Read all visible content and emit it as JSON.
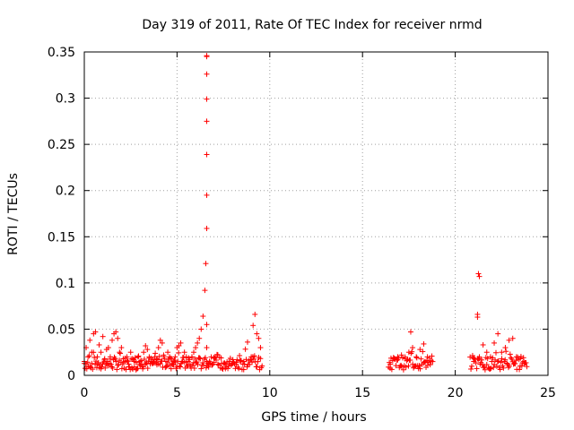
{
  "chart_data": {
    "type": "scatter",
    "title": "Day 319 of 2011, Rate Of TEC Index for receiver nrmd",
    "xlabel": "GPS time / hours",
    "ylabel": "ROTI / TECUs",
    "xlim": [
      0,
      25
    ],
    "ylim": [
      0,
      0.35
    ],
    "xticks": [
      "0",
      "5",
      "10",
      "15",
      "20",
      "25"
    ],
    "yticks": [
      "0",
      "0.05",
      "0.1",
      "0.15",
      "0.2",
      "0.25",
      "0.3",
      "0.35"
    ],
    "grid": true,
    "marker": "plus",
    "color": "#ff0000",
    "series": [
      {
        "x": [
          0.0,
          0.1,
          0.2,
          0.3,
          0.4,
          0.5,
          0.6,
          0.7,
          0.8,
          0.9,
          1.0,
          1.1,
          1.2,
          1.3,
          1.4,
          1.5,
          1.6,
          1.7,
          1.8,
          1.9,
          2.0,
          2.1,
          2.2,
          2.3,
          2.4,
          2.5,
          2.6,
          2.7,
          2.8,
          2.9,
          3.0,
          3.1,
          3.2,
          3.3,
          3.4,
          3.5,
          3.6,
          3.7,
          3.8,
          3.9,
          4.0,
          4.1,
          4.2,
          4.3,
          4.4,
          4.5,
          4.6,
          4.7,
          4.8,
          4.9,
          5.0,
          5.1,
          5.2,
          5.3,
          5.4,
          5.5,
          5.6,
          5.7,
          5.8,
          5.9,
          6.0,
          6.1,
          6.2,
          6.3,
          6.4,
          6.5,
          6.55,
          6.6,
          6.6,
          6.6,
          6.6,
          6.6,
          6.6,
          6.6,
          6.6,
          6.6,
          6.6,
          6.6,
          6.7,
          6.8,
          6.9,
          7.0,
          7.2,
          7.4,
          7.6,
          7.8,
          8.0,
          8.2,
          8.4,
          8.6,
          8.8,
          9.0,
          9.1,
          9.2,
          9.3,
          9.4,
          9.5
        ],
        "y": [
          0.015,
          0.03,
          0.02,
          0.038,
          0.025,
          0.045,
          0.047,
          0.02,
          0.033,
          0.025,
          0.042,
          0.018,
          0.028,
          0.03,
          0.02,
          0.038,
          0.045,
          0.047,
          0.04,
          0.025,
          0.03,
          0.018,
          0.015,
          0.02,
          0.012,
          0.025,
          0.018,
          0.015,
          0.014,
          0.02,
          0.015,
          0.012,
          0.025,
          0.032,
          0.028,
          0.02,
          0.015,
          0.013,
          0.02,
          0.018,
          0.03,
          0.038,
          0.035,
          0.02,
          0.015,
          0.025,
          0.02,
          0.018,
          0.015,
          0.02,
          0.03,
          0.032,
          0.035,
          0.015,
          0.025,
          0.02,
          0.015,
          0.012,
          0.02,
          0.025,
          0.03,
          0.035,
          0.04,
          0.05,
          0.064,
          0.092,
          0.121,
          0.159,
          0.195,
          0.239,
          0.275,
          0.299,
          0.326,
          0.346,
          0.345,
          0.055,
          0.03,
          0.015,
          0.012,
          0.013,
          0.012,
          0.014,
          0.012,
          0.013,
          0.012,
          0.015,
          0.013,
          0.014,
          0.016,
          0.015,
          0.036,
          0.02,
          0.054,
          0.066,
          0.045,
          0.04,
          0.03
        ],
        "marker_color": "#ff0000"
      },
      {
        "x": [
          16.5,
          16.7,
          16.9,
          17.1,
          17.3,
          17.5,
          17.6,
          17.7,
          17.9,
          18.1,
          18.3,
          18.5,
          18.7,
          21.0,
          21.2,
          21.2,
          21.25,
          21.3,
          21.3,
          21.5,
          21.7,
          21.9,
          22.1,
          22.3,
          22.5,
          22.7,
          22.9,
          23.1,
          23.3,
          23.5,
          23.7
        ],
        "y": [
          0.012,
          0.018,
          0.02,
          0.022,
          0.018,
          0.025,
          0.047,
          0.03,
          0.02,
          0.028,
          0.034,
          0.02,
          0.015,
          0.015,
          0.063,
          0.066,
          0.11,
          0.107,
          0.02,
          0.033,
          0.025,
          0.02,
          0.035,
          0.045,
          0.025,
          0.03,
          0.038,
          0.04,
          0.02,
          0.018,
          0.015
        ],
        "marker_color": "#ff0000"
      }
    ]
  }
}
